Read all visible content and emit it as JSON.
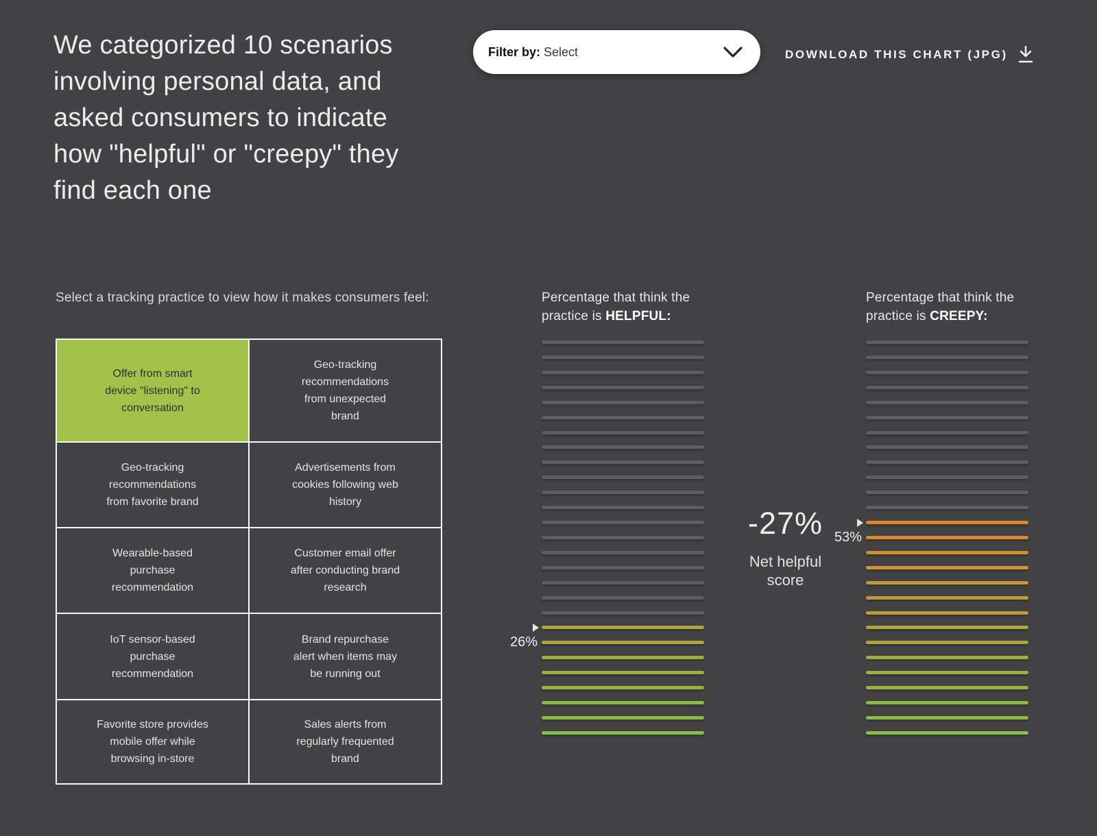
{
  "page": {
    "background": "#424244"
  },
  "title": "We categorized 10 scenarios\ninvolving personal data, and\nasked consumers to indicate\nhow \"helpful\" or \"creepy\" they\nfind each one",
  "toolbar": {
    "filter_label": "Filter by:",
    "filter_value": "Select",
    "download_label": "DOWNLOAD THIS CHART (JPG)"
  },
  "icons": {
    "filter_chevron": "chevron-down",
    "download": "download-arrow-underline",
    "pointer": "triangle-right"
  },
  "selector": {
    "prompt": "Select a tracking practice to view how it makes consumers feel:",
    "selected_index": 0,
    "selected_color": "#a3c24a",
    "options": [
      "Offer from smart\ndevice \"listening\" to\nconversation",
      "Geo-tracking\nrecommendations\nfrom unexpected\nbrand",
      "Geo-tracking\nrecommendations\nfrom favorite brand",
      "Advertisements from\ncookies following web\nhistory",
      "Wearable-based\npurchase\nrecommendation",
      "Customer email offer\nafter conducting brand\nresearch",
      "IoT sensor-based\npurchase\nrecommendation",
      "Brand repurchase\nalert when items may\nbe running out",
      "Favorite store provides\nmobile offer while\nbrowsing in-store",
      "Sales alerts from\nregularly frequented\nbrand"
    ]
  },
  "charts": {
    "gray_color": "#5e5e60",
    "palette": [
      "#e0862f",
      "#d98a31",
      "#d38e32",
      "#cc9234",
      "#c59736",
      "#bf9b37",
      "#b89f39",
      "#b2a33b",
      "#aba73c",
      "#a4ab3e",
      "#9eaf3f",
      "#97b441",
      "#90b843",
      "#8abc44",
      "#83c046"
    ],
    "helpful": {
      "heading_line1": "Percentage that think the",
      "heading_line2_prefix": "practice is ",
      "heading_keyword": "HELPFUL:",
      "value_label": "26%",
      "percent": 26,
      "total_lines": 27,
      "colored_lines": 8
    },
    "creepy": {
      "heading_line1": "Percentage that think the",
      "heading_line2_prefix": "practice is ",
      "heading_keyword": "CREEPY:",
      "value_label": "53%",
      "percent": 53,
      "total_lines": 27,
      "colored_lines": 15
    },
    "net": {
      "value": "-27%",
      "label": "Net helpful\nscore"
    }
  },
  "chart_data": {
    "type": "bar",
    "title": "Percentage that think the practice is HELPFUL vs CREEPY",
    "selected_practice": "Offer from smart device \"listening\" to conversation",
    "categories": [
      "HELPFUL",
      "CREEPY"
    ],
    "values": [
      26,
      53
    ],
    "unit": "%",
    "net_helpful_score": -27,
    "ylim": [
      0,
      100
    ],
    "legend_position": "none",
    "pictogram": {
      "total_lines_per_column": 27,
      "helpful_colored_lines": 8,
      "creepy_colored_lines": 15,
      "color_scale": "orange-to-green by row position"
    },
    "practices": [
      "Offer from smart device \"listening\" to conversation",
      "Geo-tracking recommendations from unexpected brand",
      "Geo-tracking recommendations from favorite brand",
      "Advertisements from cookies following web history",
      "Wearable-based purchase recommendation",
      "Customer email offer after conducting brand research",
      "IoT sensor-based purchase recommendation",
      "Brand repurchase alert when items may be running out",
      "Favorite store provides mobile offer while browsing in-store",
      "Sales alerts from regularly frequented brand"
    ]
  }
}
